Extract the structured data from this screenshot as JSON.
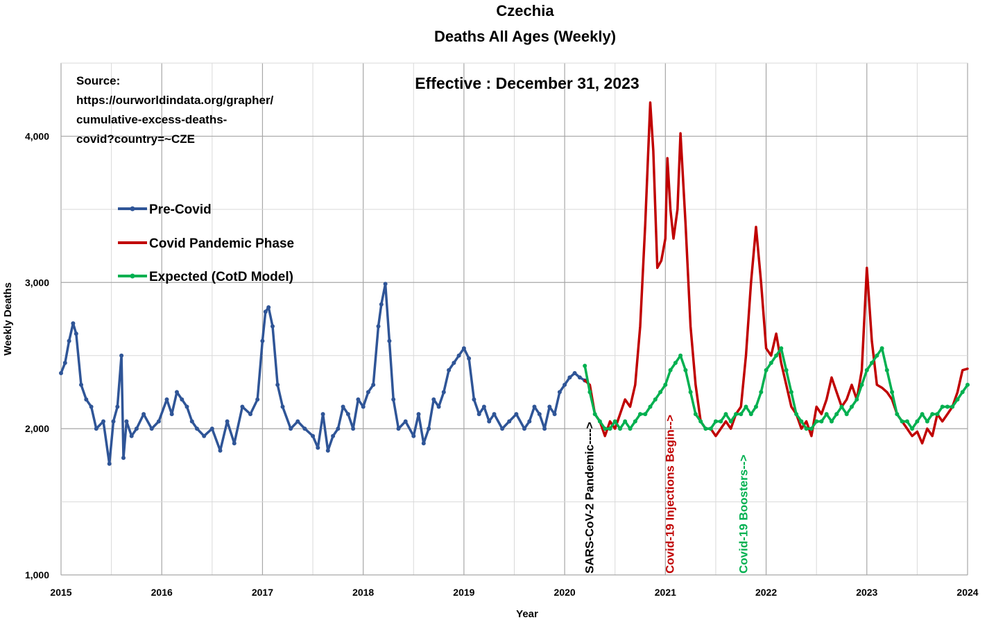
{
  "chart_data": {
    "type": "line",
    "title": "Czechia",
    "subtitle": "Deaths All Ages (Weekly)",
    "effective_note": "Effective : December 31, 2023",
    "source_lines": [
      "Source:",
      "https://ourworldindata.org/grapher/",
      "cumulative-excess-deaths-",
      "covid?country=~CZE"
    ],
    "xlabel": "Year",
    "ylabel": "Weekly Deaths",
    "xlim": [
      2015,
      2024
    ],
    "ylim": [
      1000,
      4500
    ],
    "x_ticks": [
      "2015",
      "2016",
      "2017",
      "2018",
      "2019",
      "2020",
      "2021",
      "2022",
      "2023",
      "2024"
    ],
    "y_ticks": [
      {
        "value": 1000,
        "label": "1,000"
      },
      {
        "value": 2000,
        "label": "2,000"
      },
      {
        "value": 3000,
        "label": "3,000"
      },
      {
        "value": 4000,
        "label": "4,000"
      }
    ],
    "grid": true,
    "legend_position": "top-left",
    "series": [
      {
        "name": "Pre-Covid",
        "color": "#2f5597",
        "markers": true,
        "x": [
          2015.0,
          2015.04,
          2015.08,
          2015.12,
          2015.15,
          2015.2,
          2015.25,
          2015.3,
          2015.35,
          2015.42,
          2015.48,
          2015.52,
          2015.56,
          2015.6,
          2015.62,
          2015.65,
          2015.7,
          2015.75,
          2015.82,
          2015.9,
          2015.97,
          2016.05,
          2016.1,
          2016.15,
          2016.2,
          2016.25,
          2016.3,
          2016.35,
          2016.42,
          2016.5,
          2016.58,
          2016.65,
          2016.72,
          2016.8,
          2016.88,
          2016.95,
          2017.0,
          2017.03,
          2017.06,
          2017.1,
          2017.15,
          2017.2,
          2017.28,
          2017.35,
          2017.42,
          2017.5,
          2017.55,
          2017.6,
          2017.65,
          2017.7,
          2017.75,
          2017.8,
          2017.85,
          2017.9,
          2017.95,
          2018.0,
          2018.05,
          2018.1,
          2018.15,
          2018.18,
          2018.22,
          2018.26,
          2018.3,
          2018.35,
          2018.42,
          2018.5,
          2018.55,
          2018.6,
          2018.65,
          2018.7,
          2018.75,
          2018.8,
          2018.85,
          2018.9,
          2018.95,
          2019.0,
          2019.05,
          2019.1,
          2019.15,
          2019.2,
          2019.25,
          2019.3,
          2019.38,
          2019.45,
          2019.52,
          2019.6,
          2019.65,
          2019.7,
          2019.75,
          2019.8,
          2019.85,
          2019.9,
          2019.95,
          2020.0,
          2020.05,
          2020.1,
          2020.15,
          2020.2
        ],
        "y": [
          2380,
          2450,
          2600,
          2720,
          2650,
          2300,
          2200,
          2150,
          2000,
          2050,
          1760,
          2050,
          2150,
          2500,
          1800,
          2050,
          1950,
          2000,
          2100,
          2000,
          2050,
          2200,
          2100,
          2250,
          2200,
          2150,
          2050,
          2000,
          1950,
          2000,
          1850,
          2050,
          1900,
          2150,
          2100,
          2200,
          2600,
          2800,
          2830,
          2700,
          2300,
          2150,
          2000,
          2050,
          2000,
          1950,
          1870,
          2100,
          1850,
          1950,
          2000,
          2150,
          2100,
          2000,
          2200,
          2150,
          2250,
          2300,
          2700,
          2850,
          2990,
          2600,
          2200,
          2000,
          2050,
          1950,
          2100,
          1900,
          2000,
          2200,
          2150,
          2250,
          2400,
          2450,
          2500,
          2550,
          2480,
          2200,
          2100,
          2150,
          2050,
          2100,
          2000,
          2050,
          2100,
          2000,
          2050,
          2150,
          2100,
          2000,
          2150,
          2100,
          2250,
          2300,
          2350,
          2380,
          2350,
          2330
        ]
      },
      {
        "name": "Covid Pandemic Phase",
        "color": "#c00000",
        "markers": false,
        "x": [
          2020.2,
          2020.25,
          2020.3,
          2020.35,
          2020.4,
          2020.45,
          2020.5,
          2020.55,
          2020.6,
          2020.65,
          2020.7,
          2020.75,
          2020.8,
          2020.85,
          2020.88,
          2020.92,
          2020.96,
          2021.0,
          2021.02,
          2021.05,
          2021.08,
          2021.12,
          2021.15,
          2021.2,
          2021.25,
          2021.3,
          2021.35,
          2021.4,
          2021.45,
          2021.5,
          2021.55,
          2021.6,
          2021.65,
          2021.7,
          2021.75,
          2021.8,
          2021.85,
          2021.9,
          2021.95,
          2022.0,
          2022.05,
          2022.1,
          2022.15,
          2022.2,
          2022.25,
          2022.3,
          2022.35,
          2022.4,
          2022.45,
          2022.5,
          2022.55,
          2022.6,
          2022.65,
          2022.7,
          2022.75,
          2022.8,
          2022.85,
          2022.9,
          2022.95,
          2023.0,
          2023.05,
          2023.1,
          2023.15,
          2023.2,
          2023.25,
          2023.3,
          2023.35,
          2023.4,
          2023.45,
          2023.5,
          2023.55,
          2023.6,
          2023.65,
          2023.7,
          2023.75,
          2023.8,
          2023.85,
          2023.9,
          2023.95,
          2024.0
        ],
        "y": [
          2330,
          2300,
          2100,
          2050,
          1950,
          2050,
          2000,
          2100,
          2200,
          2150,
          2300,
          2700,
          3400,
          4230,
          3900,
          3100,
          3150,
          3300,
          3850,
          3500,
          3300,
          3500,
          4020,
          3400,
          2700,
          2300,
          2050,
          2000,
          2000,
          1950,
          2000,
          2050,
          2000,
          2100,
          2150,
          2500,
          3000,
          3380,
          3000,
          2550,
          2500,
          2650,
          2450,
          2300,
          2150,
          2100,
          2000,
          2050,
          1950,
          2150,
          2100,
          2200,
          2350,
          2250,
          2150,
          2200,
          2300,
          2200,
          2400,
          3100,
          2600,
          2300,
          2280,
          2250,
          2200,
          2100,
          2050,
          2000,
          1950,
          1980,
          1900,
          2000,
          1950,
          2100,
          2050,
          2100,
          2150,
          2250,
          2400,
          2410
        ]
      },
      {
        "name": "Expected (CotD Model)",
        "color": "#00b050",
        "markers": true,
        "x": [
          2020.2,
          2020.25,
          2020.3,
          2020.35,
          2020.4,
          2020.45,
          2020.5,
          2020.55,
          2020.6,
          2020.65,
          2020.7,
          2020.75,
          2020.8,
          2020.85,
          2020.9,
          2020.95,
          2021.0,
          2021.05,
          2021.1,
          2021.15,
          2021.2,
          2021.25,
          2021.3,
          2021.35,
          2021.4,
          2021.45,
          2021.5,
          2021.55,
          2021.6,
          2021.65,
          2021.7,
          2021.75,
          2021.8,
          2021.85,
          2021.9,
          2021.95,
          2022.0,
          2022.05,
          2022.1,
          2022.15,
          2022.2,
          2022.25,
          2022.3,
          2022.35,
          2022.4,
          2022.45,
          2022.5,
          2022.55,
          2022.6,
          2022.65,
          2022.7,
          2022.75,
          2022.8,
          2022.85,
          2022.9,
          2022.95,
          2023.0,
          2023.05,
          2023.1,
          2023.15,
          2023.2,
          2023.25,
          2023.3,
          2023.35,
          2023.4,
          2023.45,
          2023.5,
          2023.55,
          2023.6,
          2023.65,
          2023.7,
          2023.75,
          2023.8,
          2023.85,
          2023.9,
          2023.95,
          2024.0
        ],
        "y": [
          2430,
          2250,
          2100,
          2050,
          2000,
          2000,
          2050,
          2000,
          2050,
          2000,
          2050,
          2100,
          2100,
          2150,
          2200,
          2250,
          2300,
          2400,
          2450,
          2500,
          2400,
          2250,
          2100,
          2050,
          2000,
          2000,
          2050,
          2050,
          2100,
          2050,
          2100,
          2100,
          2150,
          2100,
          2150,
          2250,
          2400,
          2450,
          2500,
          2550,
          2400,
          2250,
          2100,
          2050,
          2000,
          2000,
          2050,
          2050,
          2100,
          2050,
          2100,
          2150,
          2100,
          2150,
          2200,
          2300,
          2400,
          2450,
          2500,
          2550,
          2400,
          2250,
          2100,
          2050,
          2050,
          2000,
          2050,
          2100,
          2050,
          2100,
          2100,
          2150,
          2150,
          2150,
          2200,
          2250,
          2300
        ]
      }
    ],
    "annotations": [
      {
        "text": "SARS-CoV-2 Pandemic---->",
        "x": 2020.25,
        "color": "#000000"
      },
      {
        "text": "Covid-19 Injections Begin-->",
        "x": 2021.05,
        "color": "#c00000"
      },
      {
        "text": "Covid-19 Boosters-->",
        "x": 2021.78,
        "color": "#00b050"
      }
    ]
  }
}
